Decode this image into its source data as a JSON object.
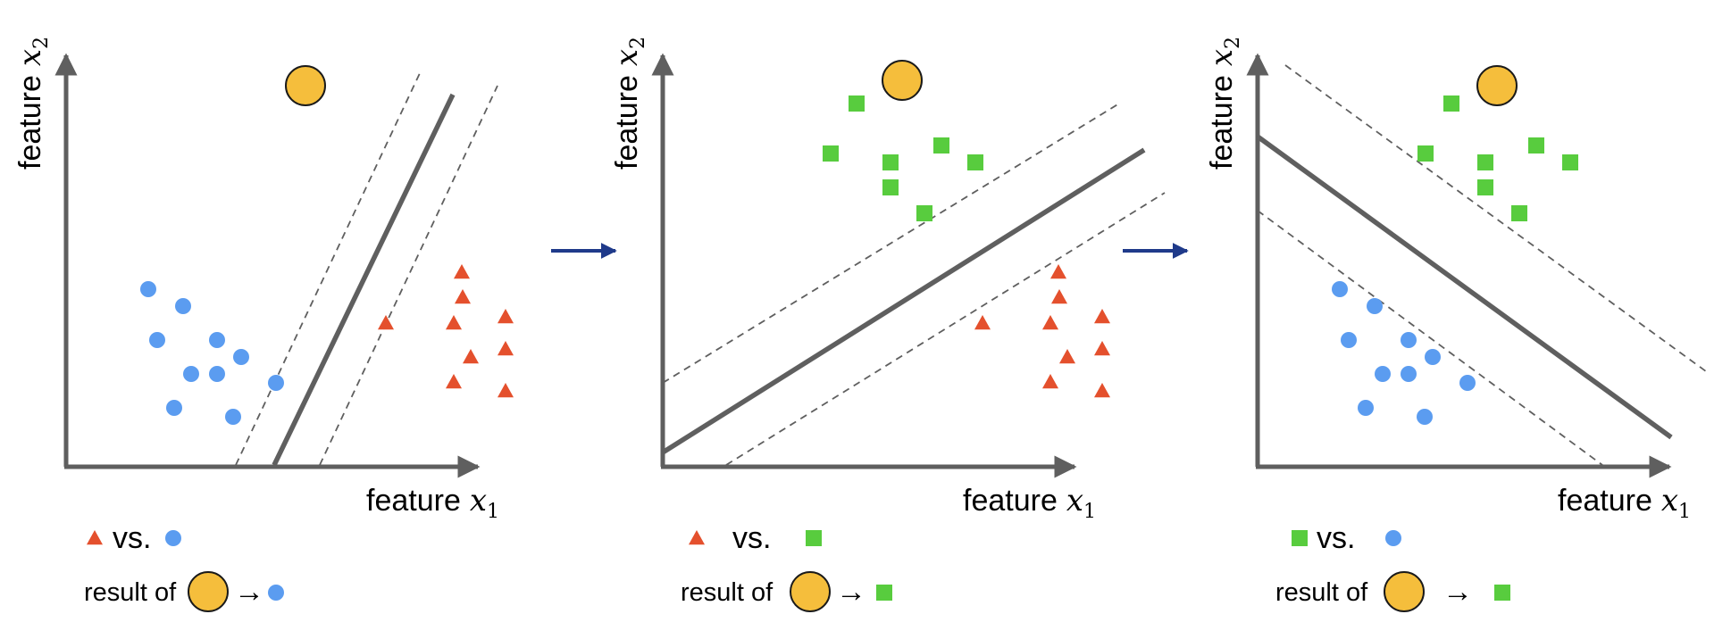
{
  "colors": {
    "axis": "#5f5f5f",
    "blue": "#5b9cf0",
    "red": "#e4502d",
    "green": "#58cc3e",
    "query_fill": "#f5be3c",
    "query_stroke": "#1a1a1a",
    "arrow": "#1f3a8a"
  },
  "panels": [
    {
      "ylabel": "feature",
      "ylabel_var": "x",
      "ylabel_sub": "2",
      "xlabel": "feature",
      "xlabel_var": "x",
      "xlabel_sub": "1",
      "classes": [
        "triangle",
        "circle"
      ],
      "vs_text": "vs.",
      "result_text": "result of",
      "result_class": "circle",
      "result_arrow": "→"
    },
    {
      "ylabel": "feature",
      "ylabel_var": "x",
      "ylabel_sub": "2",
      "xlabel": "feature",
      "xlabel_var": "x",
      "xlabel_sub": "1",
      "classes": [
        "triangle",
        "square"
      ],
      "vs_text": "vs.",
      "result_text": "result of",
      "result_class": "square",
      "result_arrow": "→"
    },
    {
      "ylabel": "feature",
      "ylabel_var": "x",
      "ylabel_sub": "2",
      "xlabel": "feature",
      "xlabel_var": "x",
      "xlabel_sub": "1",
      "classes": [
        "square",
        "circle"
      ],
      "vs_text": "vs.",
      "result_text": "result of",
      "result_class": "square",
      "result_arrow": "→"
    }
  ]
}
